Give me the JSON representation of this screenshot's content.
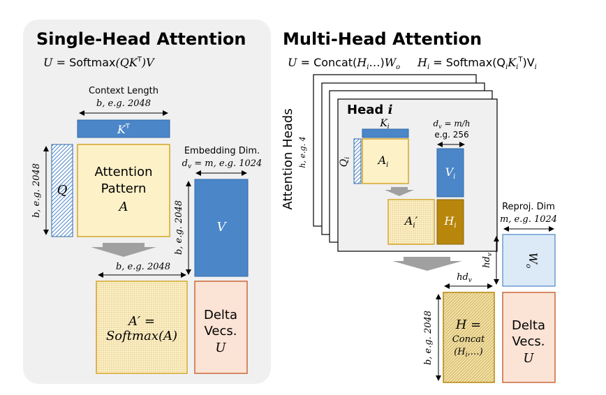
{
  "single": {
    "title": "Single-Head Attention",
    "formula_prefix": "U = ",
    "formula_fn": "Softmax",
    "formula_args": "(QK",
    "formula_sup": "T",
    "formula_end": ")V",
    "context_label": "Context Length",
    "context_value": "b, e.g. 2048",
    "kt_label": "K",
    "kt_sup": "T",
    "q_label": "Q",
    "b_vertical": "b, e.g. 2048",
    "attention_line1": "Attention",
    "attention_line2": "Pattern",
    "attention_line3": "A",
    "embedding_label": "Embedding Dim.",
    "embedding_value": "d",
    "embedding_sub": "v",
    "embedding_rest": " = m, e.g. 1024",
    "v_label": "V",
    "v_b_vertical": "b, e.g. 2048",
    "bottom_b": "b, e.g. 2048",
    "aprime_line1": "A′ =",
    "aprime_line2": "Softmax(A)",
    "delta_line1": "Delta",
    "delta_line2": "Vecs.",
    "delta_line3": "U"
  },
  "multi": {
    "title": "Multi-Head Attention",
    "formula1": "U = Concat(H",
    "formula1_sub": "i",
    "formula1_end": "…)W",
    "formula1_sub2": "o",
    "formula2": "H",
    "formula2_sub": "i",
    "formula2_mid": " = Softmax(Q",
    "formula2_sub2": "i",
    "formula2_k": "K",
    "formula2_sub3": "i",
    "formula2_sup": "T",
    "formula2_end": ")V",
    "formula2_sub4": "i",
    "heads_label": "Attention Heads",
    "heads_value": "h, e.g. 4",
    "head_title": "Head ",
    "head_i": "i",
    "ki_label": "K",
    "ki_sub": "i",
    "qi_label": "Q",
    "qi_sub": "i",
    "ai_label": "A",
    "ai_sub": "i",
    "dv_label": "d",
    "dv_sub": "v",
    "dv_rest": " = m/h",
    "dv_value": "e.g. 256",
    "vi_label": "V",
    "vi_sub": "i",
    "aip_label": "A",
    "aip_sub": "i",
    "aip_prime": "′",
    "hi_label": "H",
    "hi_sub": "i",
    "reproj_label": "Reproj. Dim",
    "reproj_value": "m, e.g. 1024",
    "hdv_left": "hd",
    "hdv_left_sub": "v",
    "wo_label": "W",
    "wo_sub": "o",
    "hdv_top": "hd",
    "hdv_top_sub": "v",
    "h_b_vertical": "b, e.g. 2048",
    "h_line1": "H =",
    "h_line2": "Concat",
    "h_line3": "(H",
    "h_line3_sub": "i",
    "h_line3_end": ",…)",
    "delta_line1": "Delta",
    "delta_line2": "Vecs.",
    "delta_line3": "U"
  },
  "colors": {
    "panel_bg": "#f0f0f0",
    "blue": "#4a86c8",
    "blue_dark": "#2f6aa8",
    "yellow_fill": "#fdf1c8",
    "yellow_border": "#d4a52a",
    "gold": "#b8860b",
    "peach": "#fbe3d5",
    "peach_border": "#c8693a",
    "light_blue": "#dce9f7",
    "arrow_gray": "#a0a0a0"
  }
}
